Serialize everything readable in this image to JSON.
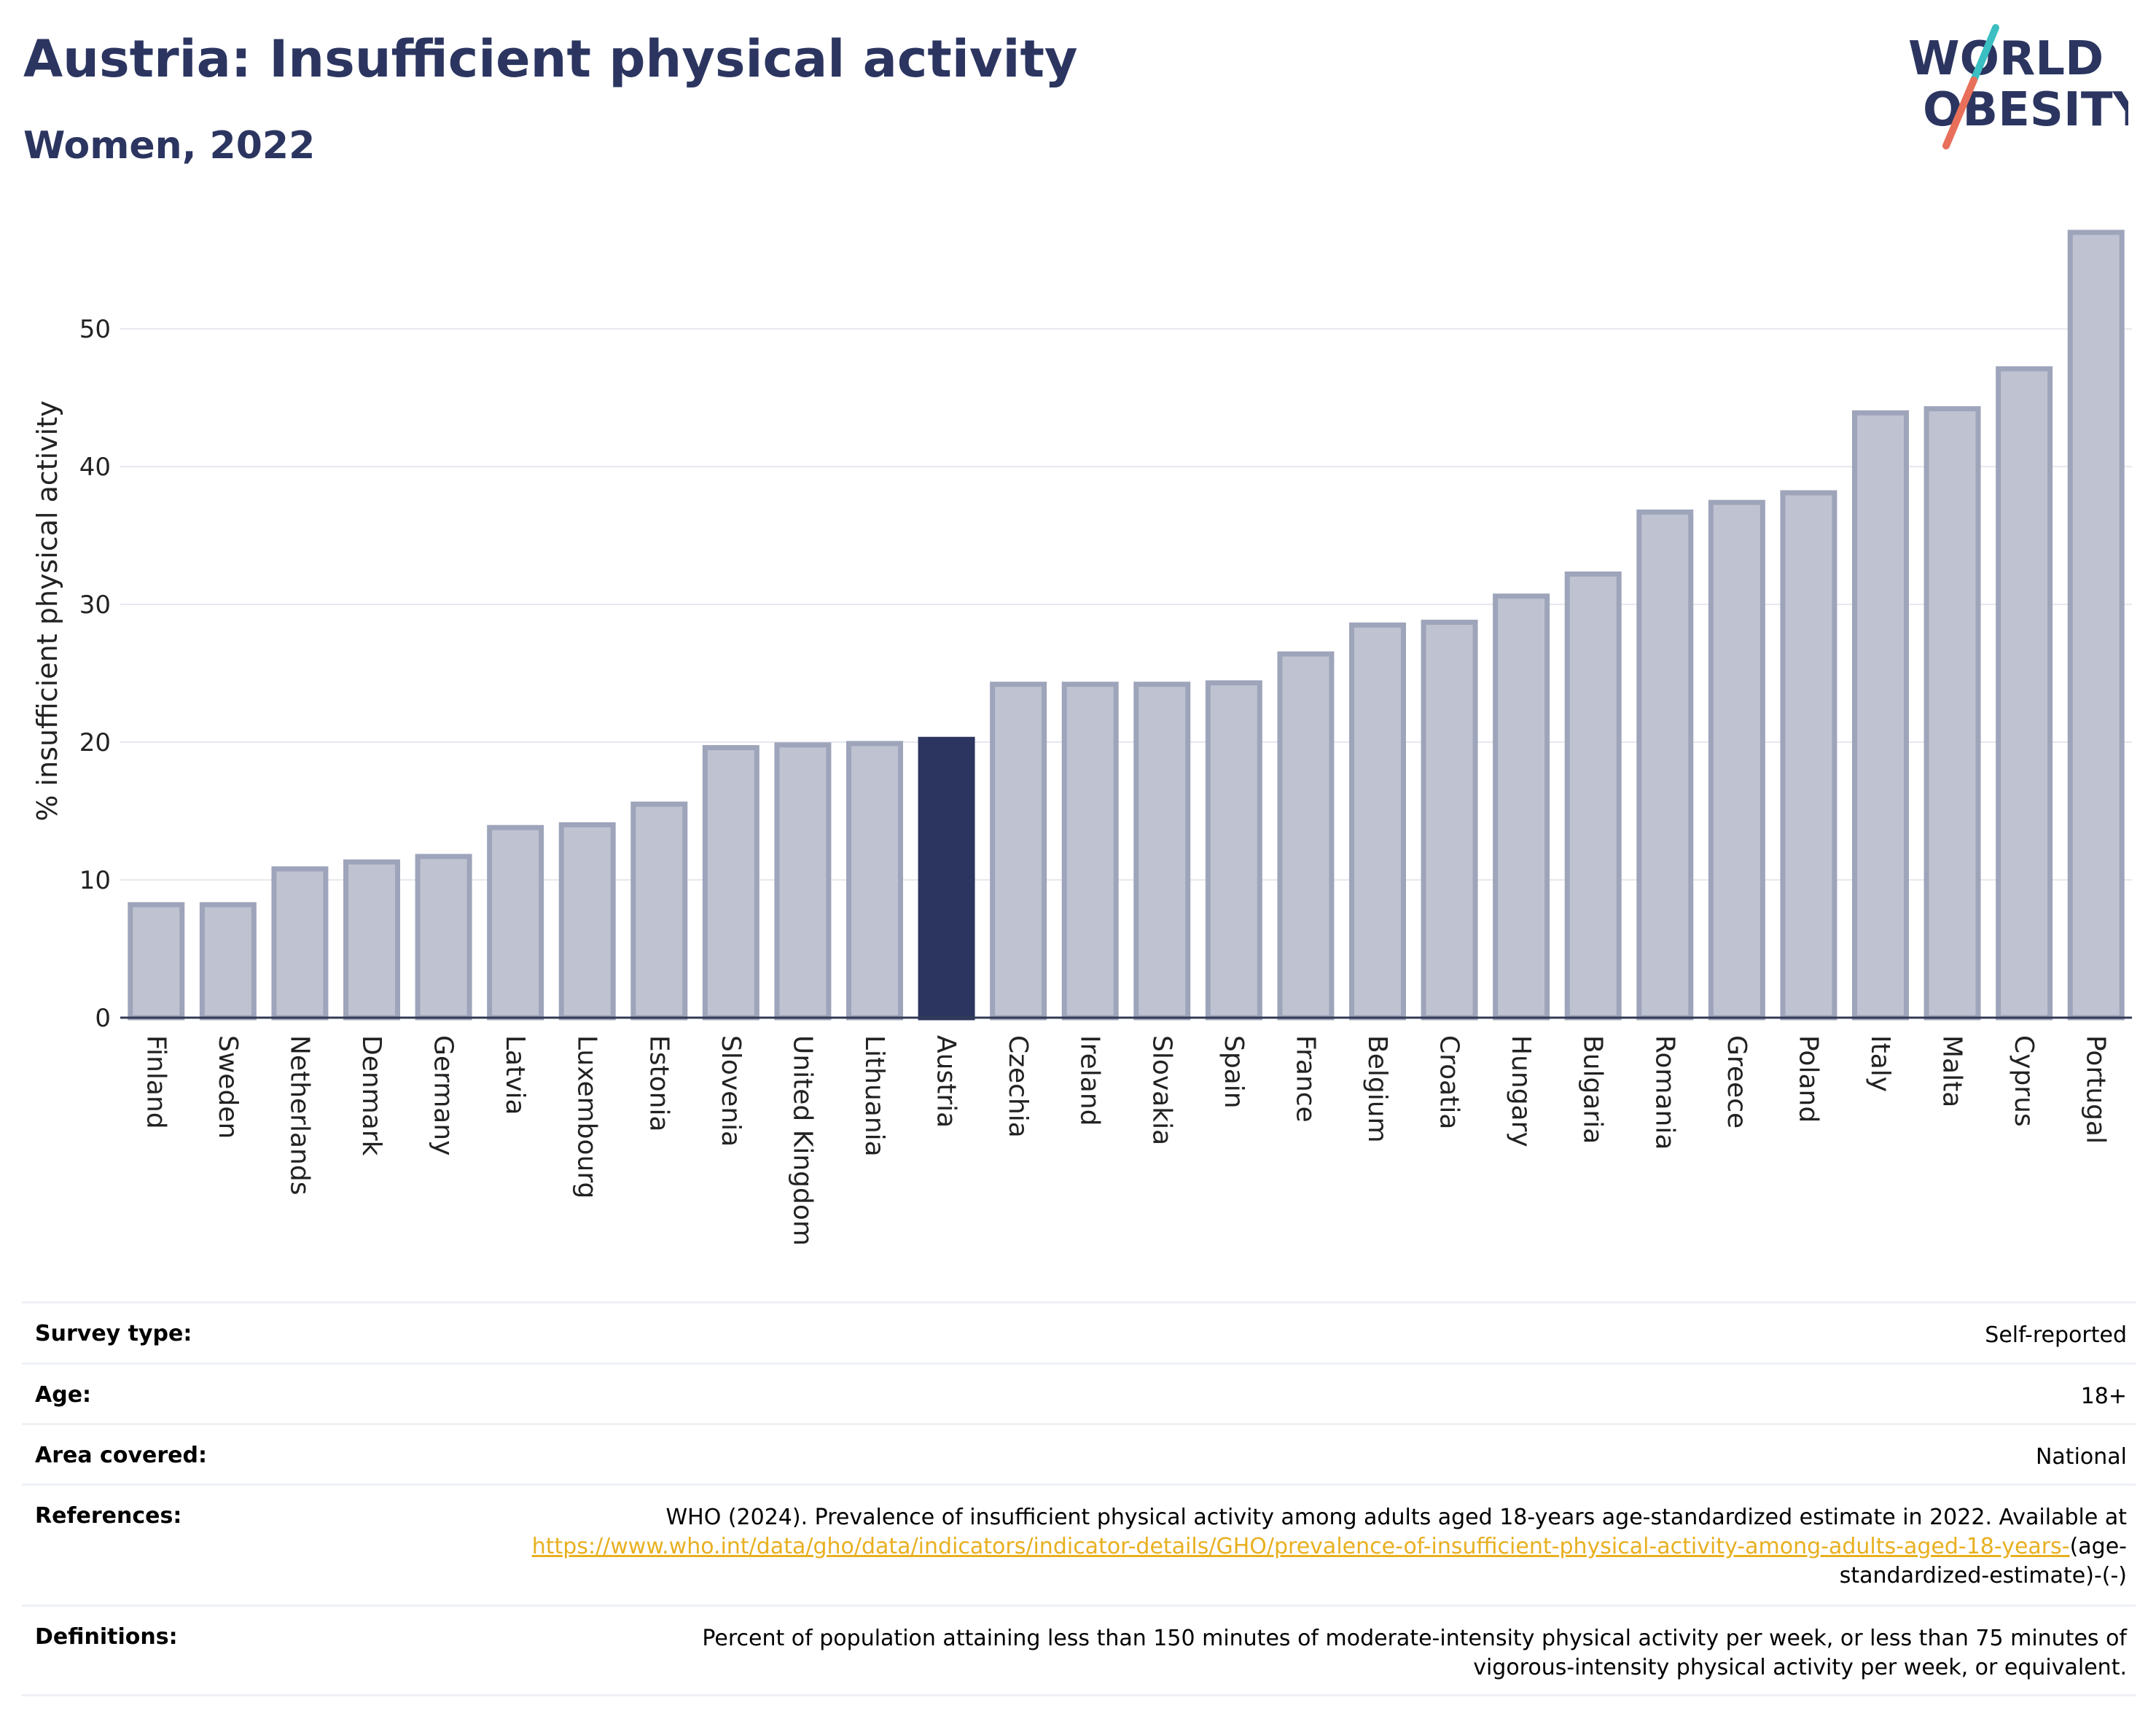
{
  "header": {
    "title": "Austria: Insufficient physical activity",
    "subtitle": "Women, 2022"
  },
  "logo": {
    "line1": "WORLD",
    "line2": "OBESITY",
    "colors": {
      "text": "#2b3560",
      "slash_top": "#3bbfc2",
      "slash_bottom": "#e8705a"
    }
  },
  "chart_data": {
    "type": "bar",
    "title": "",
    "xlabel": "",
    "ylabel": "% insufficient physical activity",
    "ylim": [
      0,
      59
    ],
    "yticks": [
      0,
      10,
      20,
      30,
      40,
      50
    ],
    "grid": true,
    "highlight": "Austria",
    "colors": {
      "bar": "#bfc3d1",
      "bar_border": "#9ea4ba",
      "highlight": "#2b3560",
      "grid": "#e6e8ef",
      "axis": "#333a55"
    },
    "categories": [
      "Finland",
      "Sweden",
      "Netherlands",
      "Denmark",
      "Germany",
      "Latvia",
      "Luxembourg",
      "Estonia",
      "Slovenia",
      "United Kingdom",
      "Lithuania",
      "Austria",
      "Czechia",
      "Ireland",
      "Slovakia",
      "Spain",
      "France",
      "Belgium",
      "Croatia",
      "Hungary",
      "Bulgaria",
      "Romania",
      "Greece",
      "Poland",
      "Italy",
      "Malta",
      "Cyprus",
      "Portugal"
    ],
    "values": [
      8.2,
      8.2,
      10.8,
      11.3,
      11.7,
      13.8,
      14.0,
      15.5,
      19.6,
      19.8,
      19.9,
      20.2,
      24.2,
      24.2,
      24.2,
      24.3,
      26.4,
      28.5,
      28.7,
      30.6,
      32.2,
      36.7,
      37.4,
      38.1,
      43.9,
      44.2,
      47.1,
      57.0
    ]
  },
  "info": {
    "survey_type": {
      "label": "Survey type:",
      "value": "Self-reported"
    },
    "age": {
      "label": "Age:",
      "value": "18+"
    },
    "area": {
      "label": "Area covered:",
      "value": "National"
    },
    "references": {
      "label": "References:",
      "text": "WHO (2024). Prevalence of insufficient physical activity among adults aged 18-years age-standardized estimate in 2022. Available at",
      "link": "https://www.who.int/data/gho/data/indicators/indicator-details/GHO/prevalence-of-insufficient-physical-activity-among-adults-aged-18-years-",
      "suffix": "(age-standardized-estimate)-(-)"
    },
    "definitions": {
      "label": "Definitions:",
      "value": "Percent of population attaining less than 150 minutes of moderate-intensity physical activity per week, or less than 75 minutes of vigorous-intensity physical activity per week, or equivalent."
    }
  }
}
